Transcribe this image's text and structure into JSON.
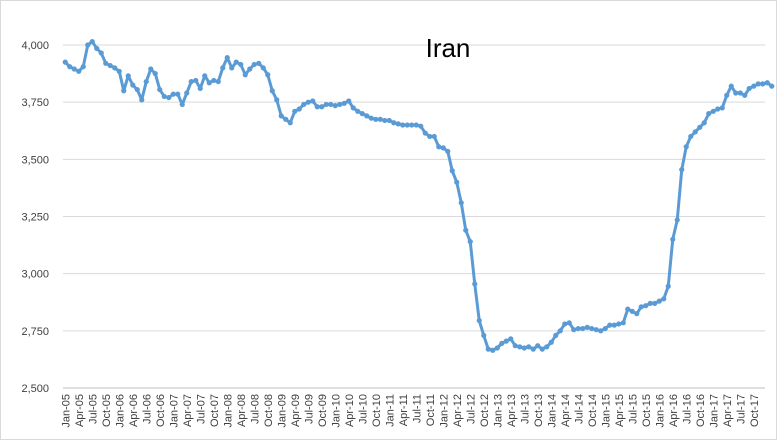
{
  "chart_data": {
    "type": "line",
    "title": "Iran",
    "xlabel": "",
    "ylabel": "",
    "ylim": [
      2500,
      4000
    ],
    "yticks": [
      2500,
      2750,
      3000,
      3250,
      3500,
      3750,
      4000
    ],
    "ytick_labels": [
      "2,500",
      "2,750",
      "3,000",
      "3,250",
      "3,500",
      "3,750",
      "4,000"
    ],
    "grid": true,
    "legend": "none",
    "x_start": "Jan-05",
    "x_end": "Dec-17",
    "xtick_labels": [
      "Jan-05",
      "Apr-05",
      "Jul-05",
      "Oct-05",
      "Jan-06",
      "Apr-06",
      "Jul-06",
      "Oct-06",
      "Jan-07",
      "Apr-07",
      "Jul-07",
      "Oct-07",
      "Jan-08",
      "Apr-08",
      "Jul-08",
      "Oct-08",
      "Jan-09",
      "Apr-09",
      "Jul-09",
      "Oct-09",
      "Jan-10",
      "Apr-10",
      "Jul-10",
      "Oct-10",
      "Jan-11",
      "Apr-11",
      "Jul-11",
      "Oct-11",
      "Jan-12",
      "Apr-12",
      "Jul-12",
      "Oct-12",
      "Jan-13",
      "Apr-13",
      "Jul-13",
      "Oct-13",
      "Jan-14",
      "Apr-14",
      "Jul-14",
      "Oct-14",
      "Jan-15",
      "Apr-15",
      "Jul-15",
      "Oct-15",
      "Jan-16",
      "Apr-16",
      "Jul-16",
      "Oct-16",
      "Jan-17",
      "Apr-17",
      "Jul-17",
      "Oct-17"
    ],
    "series": [
      {
        "color": "#5b9bd5",
        "values": [
          3925,
          3905,
          3895,
          3885,
          3905,
          4000,
          4015,
          3985,
          3965,
          3920,
          3910,
          3900,
          3885,
          3800,
          3865,
          3825,
          3805,
          3760,
          3840,
          3895,
          3875,
          3805,
          3775,
          3770,
          3785,
          3785,
          3740,
          3790,
          3840,
          3845,
          3810,
          3865,
          3835,
          3845,
          3840,
          3900,
          3945,
          3900,
          3925,
          3915,
          3870,
          3895,
          3915,
          3920,
          3900,
          3870,
          3800,
          3760,
          3690,
          3675,
          3660,
          3710,
          3720,
          3740,
          3750,
          3755,
          3730,
          3730,
          3740,
          3740,
          3735,
          3740,
          3745,
          3755,
          3725,
          3710,
          3700,
          3690,
          3680,
          3675,
          3675,
          3670,
          3670,
          3660,
          3655,
          3650,
          3650,
          3650,
          3650,
          3645,
          3615,
          3600,
          3600,
          3555,
          3550,
          3535,
          3450,
          3400,
          3310,
          3190,
          3140,
          2955,
          2795,
          2730,
          2670,
          2665,
          2675,
          2695,
          2705,
          2715,
          2685,
          2680,
          2675,
          2680,
          2670,
          2685,
          2670,
          2680,
          2700,
          2730,
          2750,
          2780,
          2785,
          2755,
          2760,
          2760,
          2765,
          2760,
          2755,
          2750,
          2760,
          2775,
          2775,
          2780,
          2785,
          2845,
          2835,
          2825,
          2855,
          2860,
          2870,
          2870,
          2880,
          2890,
          2945,
          3150,
          3235,
          3455,
          3555,
          3600,
          3620,
          3640,
          3660,
          3700,
          3710,
          3720,
          3725,
          3780,
          3820,
          3790,
          3790,
          3780,
          3810,
          3820,
          3830,
          3830,
          3835,
          3820
        ]
      }
    ]
  }
}
